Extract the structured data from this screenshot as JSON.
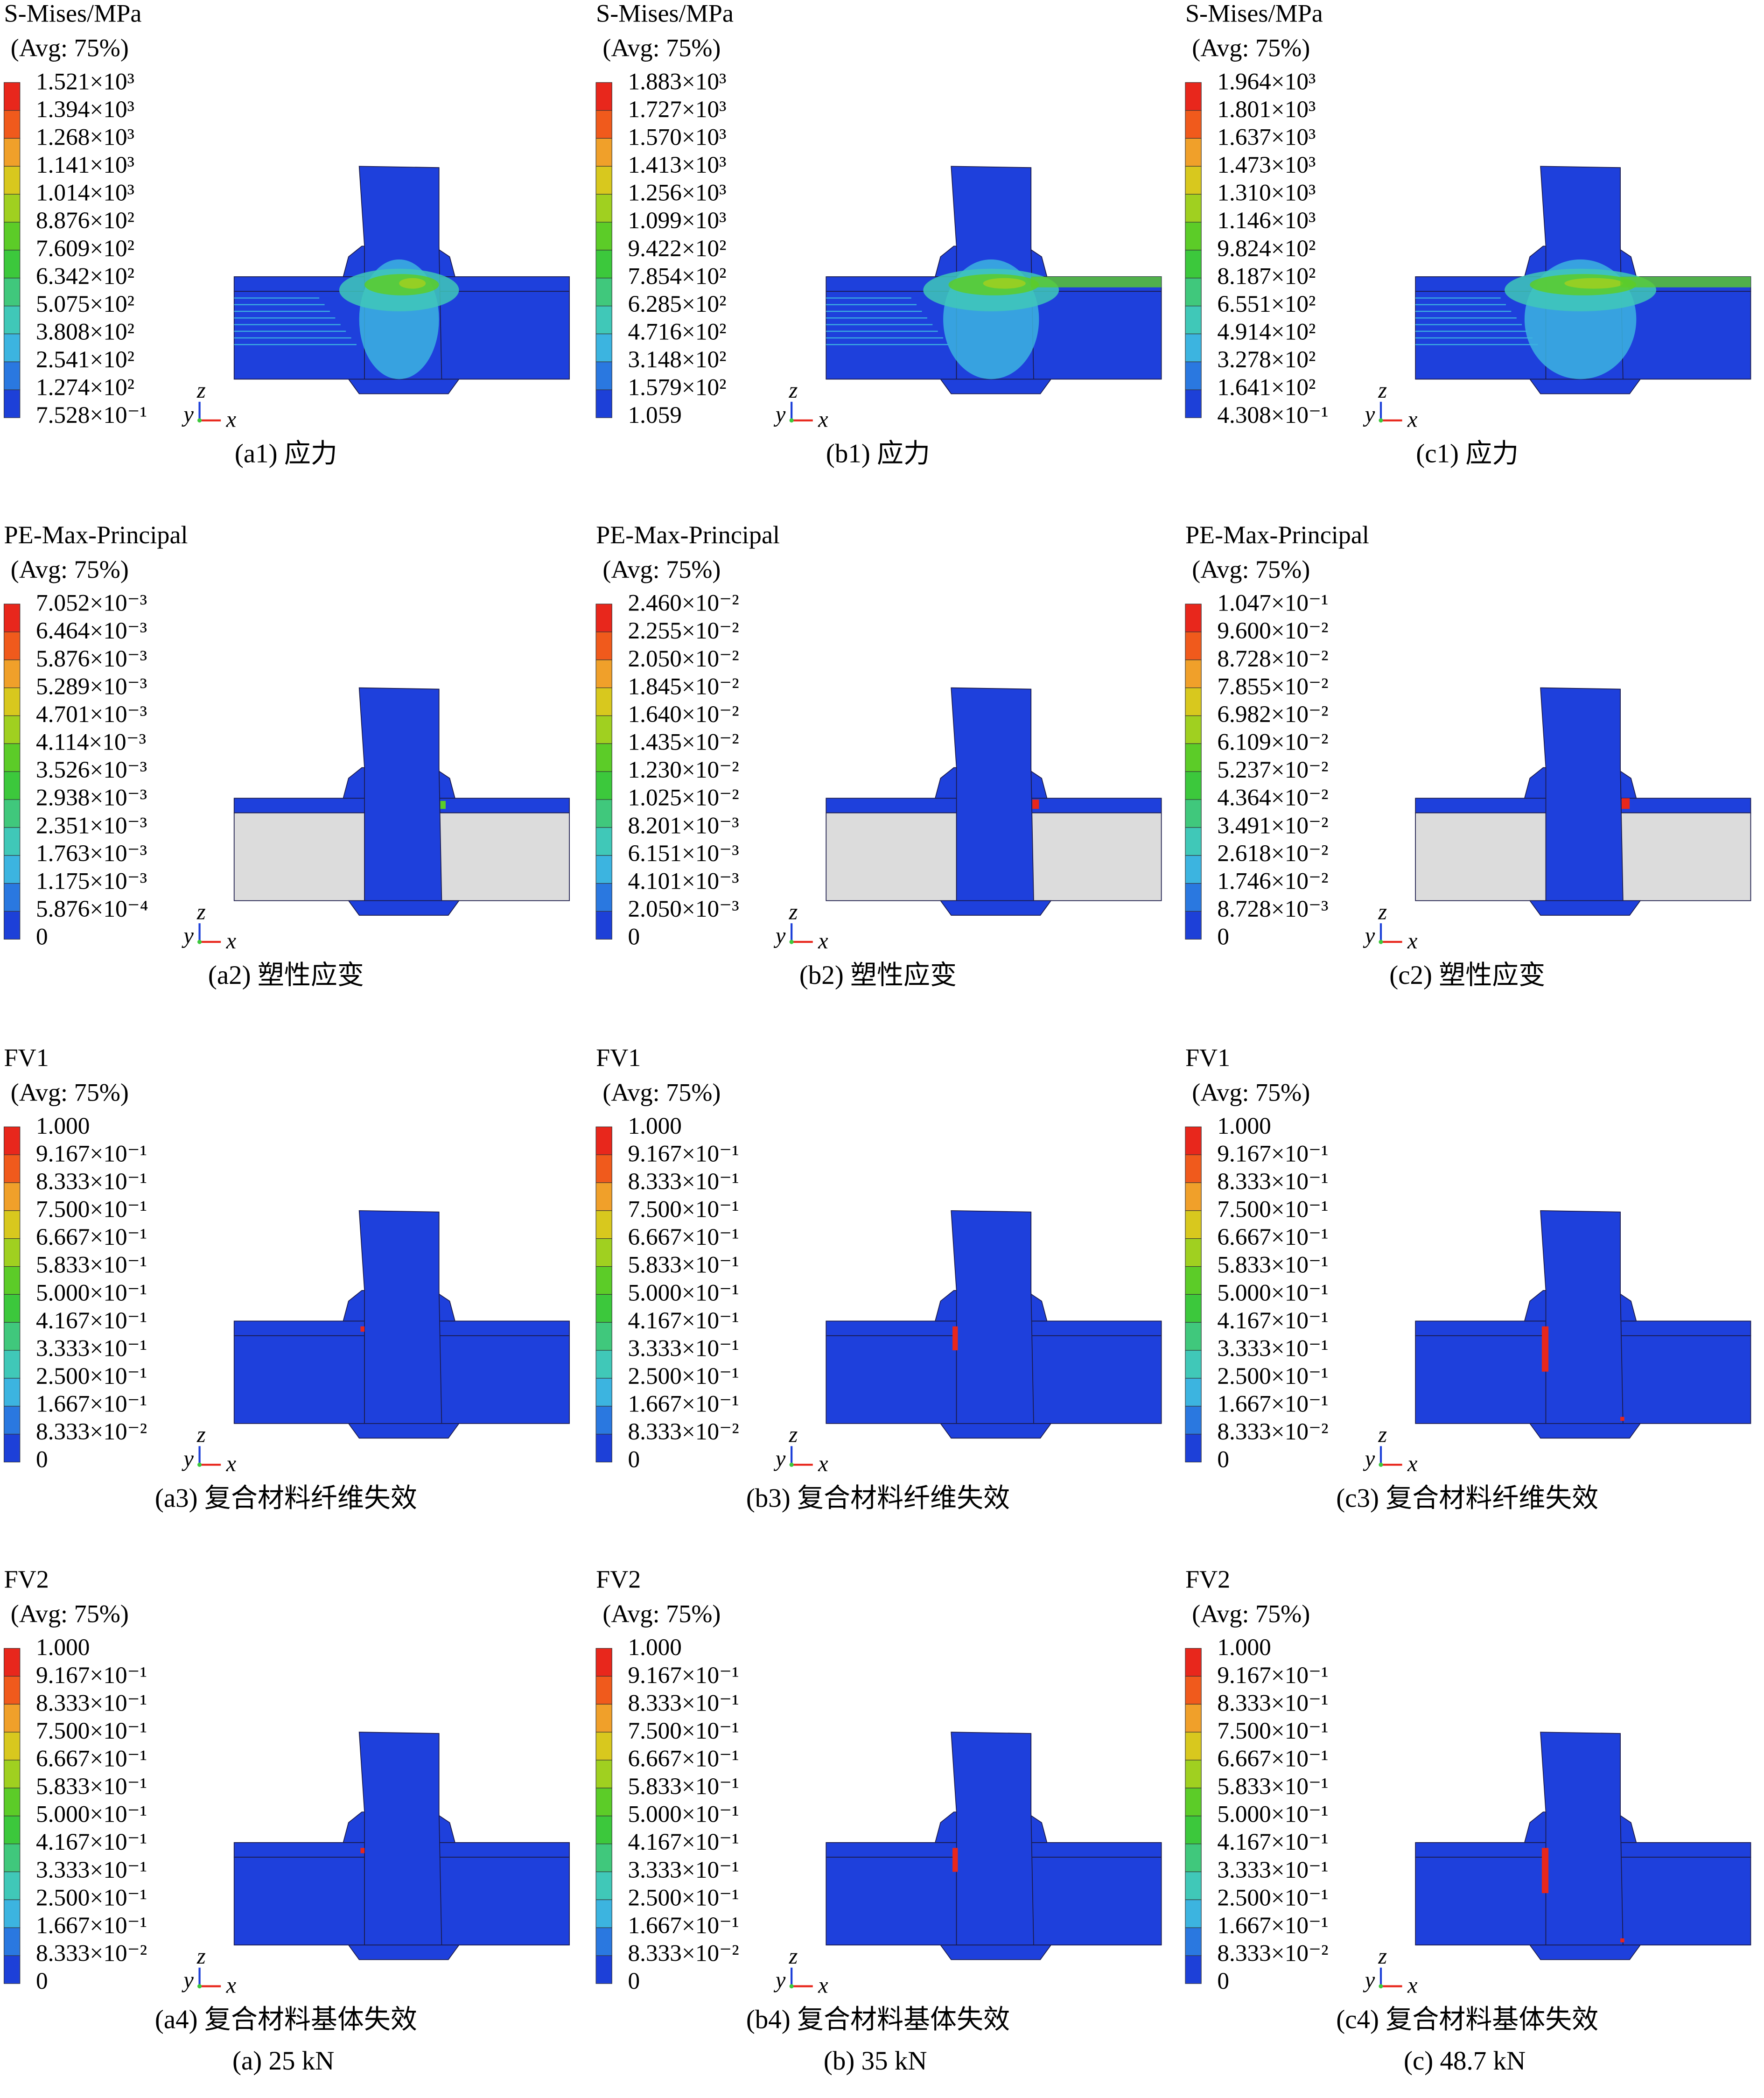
{
  "panels": [
    {
      "title": "S-Mises/MPa",
      "avg": "(Avg: 75%)",
      "legend": [
        "1.521×10³",
        "1.394×10³",
        "1.268×10³",
        "1.141×10³",
        "1.014×10³",
        "8.876×10²",
        "7.609×10²",
        "6.342×10²",
        "5.075×10²",
        "3.808×10²",
        "2.541×10²",
        "1.274×10²",
        "7.528×10⁻¹"
      ],
      "caption": "(a1) 应力"
    },
    {
      "title": "S-Mises/MPa",
      "avg": "(Avg: 75%)",
      "legend": [
        "1.883×10³",
        "1.727×10³",
        "1.570×10³",
        "1.413×10³",
        "1.256×10³",
        "1.099×10³",
        "9.422×10²",
        "7.854×10²",
        "6.285×10²",
        "4.716×10²",
        "3.148×10²",
        "1.579×10²",
        "1.059"
      ],
      "caption": "(b1) 应力"
    },
    {
      "title": "S-Mises/MPa",
      "avg": "(Avg: 75%)",
      "legend": [
        "1.964×10³",
        "1.801×10³",
        "1.637×10³",
        "1.473×10³",
        "1.310×10³",
        "1.146×10³",
        "9.824×10²",
        "8.187×10²",
        "6.551×10²",
        "4.914×10²",
        "3.278×10²",
        "1.641×10²",
        "4.308×10⁻¹"
      ],
      "caption": "(c1) 应力"
    },
    {
      "title": "PE-Max-Principal",
      "avg": "(Avg: 75%)",
      "legend": [
        "7.052×10⁻³",
        "6.464×10⁻³",
        "5.876×10⁻³",
        "5.289×10⁻³",
        "4.701×10⁻³",
        "4.114×10⁻³",
        "3.526×10⁻³",
        "2.938×10⁻³",
        "2.351×10⁻³",
        "1.763×10⁻³",
        "1.175×10⁻³",
        "5.876×10⁻⁴",
        "0"
      ],
      "caption": "(a2) 塑性应变"
    },
    {
      "title": "PE-Max-Principal",
      "avg": "(Avg: 75%)",
      "legend": [
        "2.460×10⁻²",
        "2.255×10⁻²",
        "2.050×10⁻²",
        "1.845×10⁻²",
        "1.640×10⁻²",
        "1.435×10⁻²",
        "1.230×10⁻²",
        "1.025×10⁻²",
        "8.201×10⁻³",
        "6.151×10⁻³",
        "4.101×10⁻³",
        "2.050×10⁻³",
        "0"
      ],
      "caption": "(b2) 塑性应变"
    },
    {
      "title": "PE-Max-Principal",
      "avg": "(Avg: 75%)",
      "legend": [
        "1.047×10⁻¹",
        "9.600×10⁻²",
        "8.728×10⁻²",
        "7.855×10⁻²",
        "6.982×10⁻²",
        "6.109×10⁻²",
        "5.237×10⁻²",
        "4.364×10⁻²",
        "3.491×10⁻²",
        "2.618×10⁻²",
        "1.746×10⁻²",
        "8.728×10⁻³",
        "0"
      ],
      "caption": "(c2) 塑性应变"
    },
    {
      "title": "FV1",
      "avg": "(Avg: 75%)",
      "legend": [
        "1.000",
        "9.167×10⁻¹",
        "8.333×10⁻¹",
        "7.500×10⁻¹",
        "6.667×10⁻¹",
        "5.833×10⁻¹",
        "5.000×10⁻¹",
        "4.167×10⁻¹",
        "3.333×10⁻¹",
        "2.500×10⁻¹",
        "1.667×10⁻¹",
        "8.333×10⁻²",
        "0"
      ],
      "caption": "(a3) 复合材料纤维失效"
    },
    {
      "title": "FV1",
      "avg": "(Avg: 75%)",
      "legend": [
        "1.000",
        "9.167×10⁻¹",
        "8.333×10⁻¹",
        "7.500×10⁻¹",
        "6.667×10⁻¹",
        "5.833×10⁻¹",
        "5.000×10⁻¹",
        "4.167×10⁻¹",
        "3.333×10⁻¹",
        "2.500×10⁻¹",
        "1.667×10⁻¹",
        "8.333×10⁻²",
        "0"
      ],
      "caption": "(b3) 复合材料纤维失效"
    },
    {
      "title": "FV1",
      "avg": "(Avg: 75%)",
      "legend": [
        "1.000",
        "9.167×10⁻¹",
        "8.333×10⁻¹",
        "7.500×10⁻¹",
        "6.667×10⁻¹",
        "5.833×10⁻¹",
        "5.000×10⁻¹",
        "4.167×10⁻¹",
        "3.333×10⁻¹",
        "2.500×10⁻¹",
        "1.667×10⁻¹",
        "8.333×10⁻²",
        "0"
      ],
      "caption": "(c3) 复合材料纤维失效"
    },
    {
      "title": "FV2",
      "avg": "(Avg: 75%)",
      "legend": [
        "1.000",
        "9.167×10⁻¹",
        "8.333×10⁻¹",
        "7.500×10⁻¹",
        "6.667×10⁻¹",
        "5.833×10⁻¹",
        "5.000×10⁻¹",
        "4.167×10⁻¹",
        "3.333×10⁻¹",
        "2.500×10⁻¹",
        "1.667×10⁻¹",
        "8.333×10⁻²",
        "0"
      ],
      "caption": "(a4) 复合材料基体失效"
    },
    {
      "title": "FV2",
      "avg": "(Avg: 75%)",
      "legend": [
        "1.000",
        "9.167×10⁻¹",
        "8.333×10⁻¹",
        "7.500×10⁻¹",
        "6.667×10⁻¹",
        "5.833×10⁻¹",
        "5.000×10⁻¹",
        "4.167×10⁻¹",
        "3.333×10⁻¹",
        "2.500×10⁻¹",
        "1.667×10⁻¹",
        "8.333×10⁻²",
        "0"
      ],
      "caption": "(b4) 复合材料基体失效"
    },
    {
      "title": "FV2",
      "avg": "(Avg: 75%)",
      "legend": [
        "1.000",
        "9.167×10⁻¹",
        "8.333×10⁻¹",
        "7.500×10⁻¹",
        "6.667×10⁻¹",
        "5.833×10⁻¹",
        "5.000×10⁻¹",
        "4.167×10⁻¹",
        "3.333×10⁻¹",
        "2.500×10⁻¹",
        "1.667×10⁻¹",
        "8.333×10⁻²",
        "0"
      ],
      "caption": "(c4) 复合材料基体失效"
    }
  ],
  "column_captions": [
    "(a) 25 kN",
    "(b) 35 kN",
    "(c) 48.7 kN"
  ],
  "triad": {
    "z": "z",
    "y": "y",
    "x": "x"
  },
  "legend_colors": [
    "#e8271c",
    "#f05a1c",
    "#f0a02a",
    "#d8c81e",
    "#a0d020",
    "#5ccc28",
    "#3cc83c",
    "#40c87c",
    "#40c8b8",
    "#3cb4e0",
    "#2a78e0",
    "#1d40d8"
  ]
}
